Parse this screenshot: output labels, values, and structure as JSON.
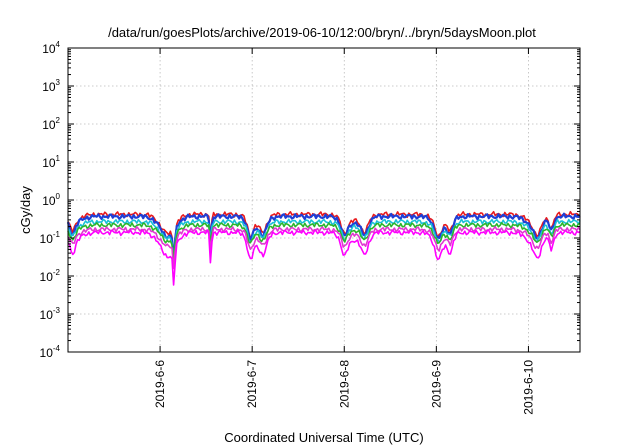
{
  "chart_data": {
    "type": "line",
    "title": "/data/run/goesPlots/archive/2019-06-10/12:00/bryn/../bryn/5daysMoon.plot",
    "xlabel": "Coordinated Universal Time (UTC)",
    "ylabel": "cGy/day",
    "yscale": "log",
    "ylim": [
      0.0001,
      10000
    ],
    "xlim": [
      0,
      5.56
    ],
    "grid": true,
    "y_ticks": [
      {
        "base": "10",
        "exp": "-4",
        "value": 0.0001
      },
      {
        "base": "10",
        "exp": "-3",
        "value": 0.001
      },
      {
        "base": "10",
        "exp": "-2",
        "value": 0.01
      },
      {
        "base": "10",
        "exp": "-1",
        "value": 0.1
      },
      {
        "base": "10",
        "exp": "0",
        "value": 1
      },
      {
        "base": "10",
        "exp": "1",
        "value": 10
      },
      {
        "base": "10",
        "exp": "2",
        "value": 100
      },
      {
        "base": "10",
        "exp": "3",
        "value": 1000
      },
      {
        "base": "10",
        "exp": "4",
        "value": 10000
      }
    ],
    "x_ticks": [
      {
        "label": "2019-6-6",
        "value": 1
      },
      {
        "label": "2019-6-7",
        "value": 2
      },
      {
        "label": "2019-6-8",
        "value": 3
      },
      {
        "label": "2019-6-9",
        "value": 4
      },
      {
        "label": "2019-6-10",
        "value": 5
      }
    ],
    "series": [
      {
        "color": "#e8191c",
        "scale": 0.42,
        "amp": 1.0
      },
      {
        "color": "#1f3fd6",
        "scale": 0.37,
        "amp": 1.05
      },
      {
        "color": "#1ac0d8",
        "scale": 0.27,
        "amp": 0.9
      },
      {
        "color": "#2bb52b",
        "scale": 0.22,
        "amp": 0.85
      },
      {
        "color": "#e03ad0",
        "scale": 0.17,
        "amp": 0.9
      },
      {
        "color": "#ff00ff",
        "scale": 0.14,
        "amp": 1.25
      }
    ],
    "dips": [
      {
        "x": 0.05,
        "depth": 0.55,
        "width": 0.04
      },
      {
        "x": 1.1,
        "depth": 0.45,
        "width": 0.12
      },
      {
        "x": 1.15,
        "depth": 0.15,
        "width": 0.02
      },
      {
        "x": 1.55,
        "depth": 0.2,
        "width": 0.015
      },
      {
        "x": 1.98,
        "depth": 0.35,
        "width": 0.05
      },
      {
        "x": 2.12,
        "depth": 0.45,
        "width": 0.06
      },
      {
        "x": 3.0,
        "depth": 0.45,
        "width": 0.05
      },
      {
        "x": 3.22,
        "depth": 0.35,
        "width": 0.07
      },
      {
        "x": 4.02,
        "depth": 0.4,
        "width": 0.06
      },
      {
        "x": 4.15,
        "depth": 0.45,
        "width": 0.05
      },
      {
        "x": 5.1,
        "depth": 0.4,
        "width": 0.07
      },
      {
        "x": 5.25,
        "depth": 0.45,
        "width": 0.04
      }
    ]
  }
}
